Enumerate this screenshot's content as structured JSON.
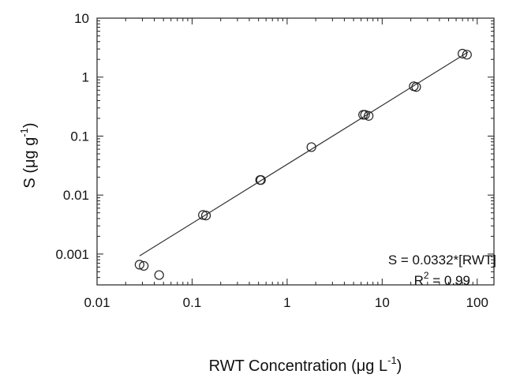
{
  "chart_data": {
    "type": "scatter",
    "title": "",
    "xlabel": {
      "main": "RWT Concentration (",
      "mu": "μ",
      "unit": "g L",
      "sup": "-1",
      "close": ")"
    },
    "ylabel": {
      "main": "S (",
      "mu": "μ",
      "unit": "g g",
      "sup": "-1",
      "close": ")"
    },
    "xscale": "log",
    "yscale": "log",
    "xlim": [
      0.01,
      150
    ],
    "ylim": [
      0.0003,
      10
    ],
    "xticks": [
      {
        "value": 0.01,
        "label": "0.01"
      },
      {
        "value": 0.1,
        "label": "0.1"
      },
      {
        "value": 1,
        "label": "1"
      },
      {
        "value": 10,
        "label": "10"
      },
      {
        "value": 100,
        "label": "100"
      }
    ],
    "yticks": [
      {
        "value": 0.001,
        "label": "0.001"
      },
      {
        "value": 0.01,
        "label": "0.01"
      },
      {
        "value": 0.1,
        "label": "0.1"
      },
      {
        "value": 1,
        "label": "1"
      },
      {
        "value": 10,
        "label": "10"
      }
    ],
    "grid": false,
    "points": [
      {
        "x": 0.028,
        "y": 0.00066
      },
      {
        "x": 0.031,
        "y": 0.00063
      },
      {
        "x": 0.045,
        "y": 0.00044
      },
      {
        "x": 0.13,
        "y": 0.0046
      },
      {
        "x": 0.14,
        "y": 0.0045
      },
      {
        "x": 0.52,
        "y": 0.018
      },
      {
        "x": 0.53,
        "y": 0.018
      },
      {
        "x": 1.8,
        "y": 0.065
      },
      {
        "x": 6.3,
        "y": 0.23
      },
      {
        "x": 6.6,
        "y": 0.23
      },
      {
        "x": 7.2,
        "y": 0.22
      },
      {
        "x": 21.5,
        "y": 0.7
      },
      {
        "x": 22.8,
        "y": 0.68
      },
      {
        "x": 70,
        "y": 2.5
      },
      {
        "x": 78,
        "y": 2.4
      }
    ],
    "fit_line": {
      "slope": 0.0332,
      "x_start": 0.028,
      "x_end": 80
    },
    "annotations": {
      "equation": "S = 0.0332*[RWT]",
      "r2_main": "R",
      "r2_sup": "2",
      "r2_rest": " = 0.99"
    }
  }
}
